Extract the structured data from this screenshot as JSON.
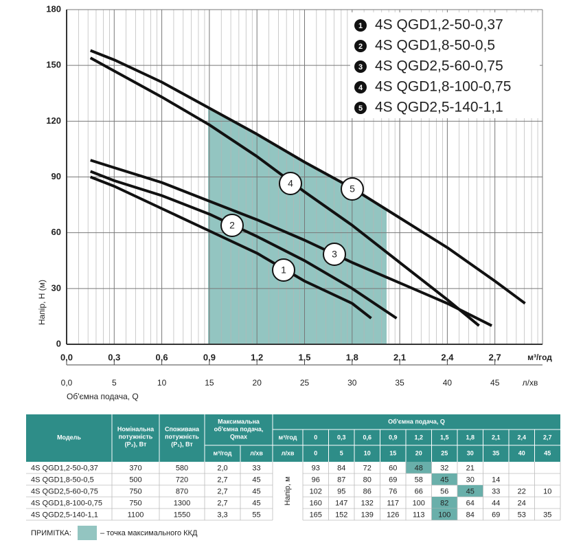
{
  "chart_data": {
    "type": "line",
    "y_label": "Напір, H (м)",
    "x_label": "Об'ємна подача, Q",
    "x_unit": "м³/год",
    "x2_unit": "л/хв",
    "xlim": [
      0,
      3.0
    ],
    "ylim": [
      0,
      180
    ],
    "x2lim": [
      0,
      50
    ],
    "grid": true,
    "xticks": [
      {
        "value": 0,
        "label": "0,0"
      },
      {
        "value": 0.3,
        "label": "0,3"
      },
      {
        "value": 0.6,
        "label": "0,6"
      },
      {
        "value": 0.9,
        "label": "0,9"
      },
      {
        "value": 1.2,
        "label": "1,2"
      },
      {
        "value": 1.5,
        "label": "1,5"
      },
      {
        "value": 1.8,
        "label": "1,8"
      },
      {
        "value": 2.1,
        "label": "2,1"
      },
      {
        "value": 2.4,
        "label": "2,4"
      },
      {
        "value": 2.7,
        "label": "2,7"
      }
    ],
    "x2ticks": [
      {
        "value": 0,
        "label": "0,0"
      },
      5,
      10,
      15,
      20,
      25,
      30,
      35,
      40,
      45
    ],
    "yticks": [
      0,
      30,
      60,
      90,
      120,
      150,
      180
    ],
    "series": [
      {
        "name": "4S QGD1,2-50-0,37",
        "marker_label": "1",
        "color": "#111111",
        "x": [
          0.15,
          0.3,
          0.6,
          0.9,
          1.2,
          1.5,
          1.8,
          1.92
        ],
        "values": [
          90,
          85,
          73,
          61,
          49,
          34,
          22,
          14
        ]
      },
      {
        "name": "4S QGD1,8-50-0,5",
        "marker_label": "2",
        "color": "#111111",
        "x": [
          0.15,
          0.3,
          0.6,
          0.9,
          1.2,
          1.5,
          1.8,
          2.08
        ],
        "values": [
          93,
          88,
          80,
          70,
          58,
          45,
          30,
          14
        ]
      },
      {
        "name": "4S QGD2,5-60-0,75",
        "marker_label": "3",
        "color": "#111111",
        "x": [
          0.15,
          0.3,
          0.6,
          0.9,
          1.2,
          1.5,
          1.8,
          2.1,
          2.4,
          2.68
        ],
        "values": [
          99,
          95,
          87,
          77,
          67,
          56,
          44,
          33,
          22,
          10
        ]
      },
      {
        "name": "4S QGD1,8-100-0,75",
        "marker_label": "4",
        "color": "#111111",
        "x": [
          0.15,
          0.3,
          0.6,
          0.9,
          1.2,
          1.5,
          1.8,
          2.1,
          2.4,
          2.6
        ],
        "values": [
          154,
          147,
          133,
          118,
          101,
          82,
          64,
          44,
          24,
          10
        ]
      },
      {
        "name": "4S QGD2,5-140-1,1",
        "marker_label": "5",
        "color": "#111111",
        "x": [
          0.15,
          0.3,
          0.6,
          0.9,
          1.2,
          1.5,
          1.8,
          2.1,
          2.4,
          2.7,
          2.89
        ],
        "values": [
          158,
          153,
          141,
          127,
          113,
          98,
          84,
          68,
          52,
          34,
          22
        ]
      }
    ]
  },
  "table": {
    "header": {
      "model": "Модель",
      "p2": [
        "Номінальна",
        "потужність",
        "(P₂), Вт"
      ],
      "p1": [
        "Споживана",
        "потужність",
        "(P₁), Вт"
      ],
      "qmax": [
        "Максимальна",
        "об'ємна подача,",
        "Qmax"
      ],
      "qmax_units": [
        "м³/год",
        "л/хв"
      ],
      "flow": "Об'ємна подача, Q",
      "flow_units": [
        "м³/год",
        "л/хв"
      ],
      "flow_m3": [
        "0",
        "0,3",
        "0,6",
        "0,9",
        "1,2",
        "1,5",
        "1,8",
        "2,1",
        "2,4",
        "2,7"
      ],
      "flow_l": [
        "0",
        "5",
        "10",
        "15",
        "20",
        "25",
        "30",
        "35",
        "40",
        "45"
      ],
      "head": "Напір, м"
    },
    "rows": [
      {
        "cells": [
          "4S QGD1,2-50-0,37",
          "370",
          "580",
          "2,0",
          "33"
        ],
        "heads": [
          "93",
          "84",
          "72",
          "60",
          "48",
          "32",
          "21",
          null,
          null,
          null
        ],
        "highlight": 4
      },
      {
        "cells": [
          "4S QGD1,8-50-0,5",
          "500",
          "720",
          "2,7",
          "45"
        ],
        "heads": [
          "96",
          "87",
          "80",
          "69",
          "58",
          "45",
          "30",
          "14",
          null,
          null
        ],
        "highlight": 5
      },
      {
        "cells": [
          "4S QGD2,5-60-0,75",
          "750",
          "870",
          "2,7",
          "45"
        ],
        "heads": [
          "102",
          "95",
          "86",
          "76",
          "66",
          "56",
          "45",
          "33",
          "22",
          "10"
        ],
        "highlight": 6
      },
      {
        "cells": [
          "4S QGD1,8-100-0,75",
          "750",
          "1300",
          "2,7",
          "45"
        ],
        "heads": [
          "160",
          "147",
          "132",
          "117",
          "100",
          "82",
          "64",
          "44",
          "24",
          null
        ],
        "highlight": 5
      },
      {
        "cells": [
          "4S QGD2,5-140-1,1",
          "1100",
          "1550",
          "3,3",
          "55"
        ],
        "heads": [
          "165",
          "152",
          "139",
          "126",
          "113",
          "100",
          "84",
          "69",
          "53",
          "35"
        ],
        "highlight": 5
      }
    ]
  },
  "note": {
    "label": "ПРИМІТКА:",
    "text": "– точка максимального ККД"
  }
}
